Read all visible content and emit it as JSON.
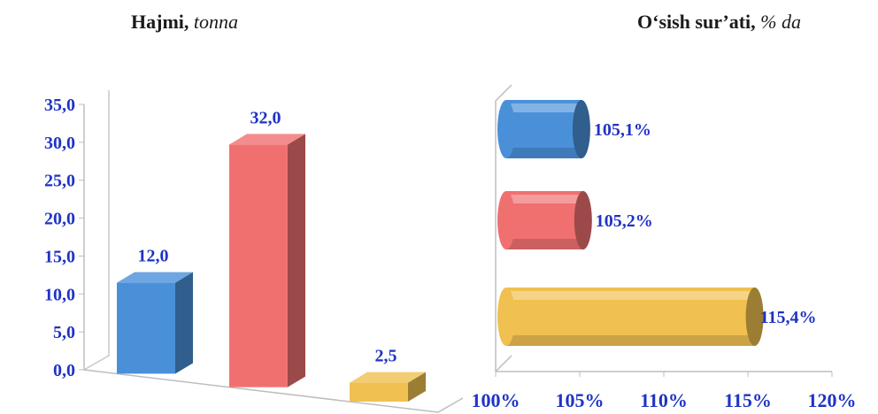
{
  "chart_data": [
    {
      "type": "bar",
      "title": "Hajmi,",
      "title_unit": "tonna",
      "orientation": "vertical",
      "values": [
        12.0,
        32.0,
        2.5
      ],
      "labels": [
        "12,0",
        "32,0",
        "2,5"
      ],
      "colors": [
        "#4a90d9",
        "#f07070",
        "#f0c050"
      ],
      "ylim": [
        0,
        35
      ],
      "yticks": [
        "0,0",
        "5,0",
        "10,0",
        "15,0",
        "20,0",
        "25,0",
        "30,0",
        "35,0"
      ],
      "style": "3d"
    },
    {
      "type": "bar",
      "title": "O‘sish sur’ati,",
      "title_unit": "% da",
      "orientation": "horizontal",
      "values": [
        105.1,
        105.2,
        115.4
      ],
      "labels": [
        "105,1%",
        "105,2%",
        "115,4%"
      ],
      "colors": [
        "#4a90d9",
        "#f07070",
        "#f0c050"
      ],
      "xlim": [
        100,
        120
      ],
      "xticks": [
        "100%",
        "105%",
        "110%",
        "115%",
        "120%"
      ],
      "style": "3d-cylinder"
    }
  ]
}
